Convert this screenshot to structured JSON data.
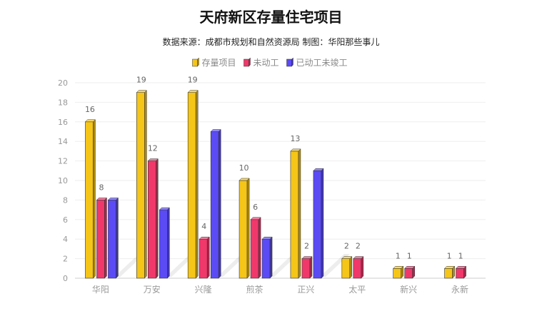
{
  "title": "天府新区存量住宅项目",
  "subtitle": "数据来源：成都市规划和自然资源局 制图：华阳那些事儿",
  "chart_data": {
    "type": "bar",
    "title": "天府新区存量住宅项目",
    "subtitle": "数据来源：成都市规划和自然资源局 制图：华阳那些事儿",
    "categories": [
      "华阳",
      "万安",
      "兴隆",
      "煎茶",
      "正兴",
      "太平",
      "新兴",
      "永新"
    ],
    "series": [
      {
        "name": "存量项目",
        "color": "#F5C518",
        "values": [
          16,
          19,
          19,
          10,
          13,
          2,
          1,
          1
        ],
        "labeled": true
      },
      {
        "name": "未动工",
        "color": "#F0386B",
        "values": [
          8,
          12,
          4,
          6,
          2,
          2,
          1,
          1
        ],
        "labeled": true
      },
      {
        "name": "已动工未竣工",
        "color": "#5B4BF5",
        "values": [
          8,
          7,
          15,
          4,
          11,
          0,
          0,
          0
        ],
        "labeled": false
      }
    ],
    "yticks": [
      0,
      2,
      4,
      6,
      8,
      10,
      12,
      14,
      16,
      18,
      20
    ],
    "ylim": [
      0,
      20
    ],
    "xlabel": "",
    "ylabel": "",
    "grid": true,
    "legend": "top-center"
  }
}
